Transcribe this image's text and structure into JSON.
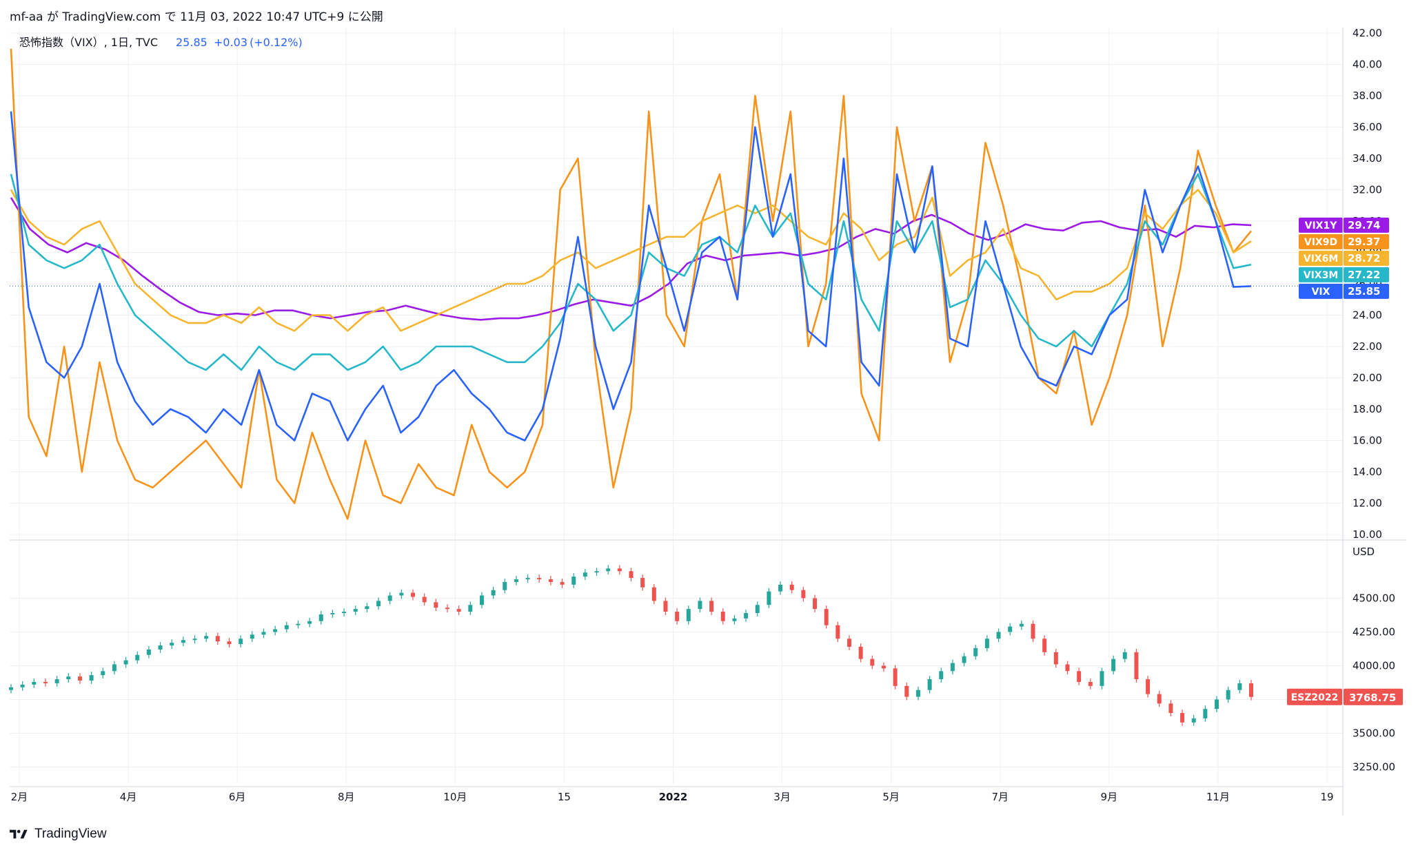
{
  "header": {
    "publish_line": "mf-aa が TradingView.com で 11月 03, 2022 10:47 UTC+9 に公開"
  },
  "legend": {
    "symbol_title": "恐怖指数（VIX）, 1日, TVC",
    "last": "25.85",
    "change": "+0.03",
    "change_pct": "(+0.12%)"
  },
  "footer": {
    "brand": "TradingView"
  },
  "colors": {
    "VIX": "#2962ff",
    "VIX3M": "#26b8c9",
    "VIX6M": "#f5b52e",
    "VIX9D": "#f7931a",
    "VIX1Y": "#9c1ae6",
    "up": "#26a69a",
    "down": "#ef5350",
    "es_badge": "#ef5350",
    "grid": "#eef0f3"
  },
  "chart_data": [
    {
      "type": "line",
      "title": "恐怖指数（VIX）, 1日, TVC",
      "x_ticks": [
        "2月",
        "4月",
        "6月",
        "8月",
        "10月",
        "15",
        "2022",
        "3月",
        "5月",
        "7月",
        "9月",
        "11月",
        "19"
      ],
      "ylim": [
        10,
        42
      ],
      "y_ticks": [
        "42.00",
        "40.00",
        "38.00",
        "36.00",
        "34.00",
        "32.00",
        "30.00",
        "28.00",
        "26.00",
        "24.00",
        "22.00",
        "20.00",
        "18.00",
        "16.00",
        "14.00",
        "12.00",
        "10.00"
      ],
      "series": [
        {
          "name": "VIX1Y",
          "last_label": "29.74",
          "values": [
            31.5,
            29.5,
            28.5,
            28.0,
            28.6,
            28.2,
            27.5,
            26.5,
            25.6,
            24.8,
            24.2,
            24.0,
            24.1,
            24.0,
            24.3,
            24.3,
            24.0,
            23.8,
            24.0,
            24.2,
            24.3,
            24.6,
            24.3,
            24.0,
            23.8,
            23.7,
            23.8,
            23.8,
            24.0,
            24.3,
            24.7,
            25.0,
            24.8,
            24.6,
            25.2,
            26.0,
            27.3,
            27.8,
            27.5,
            27.8,
            27.9,
            28.0,
            27.8,
            28.0,
            28.3,
            29.0,
            29.5,
            29.2,
            30.0,
            30.4,
            29.9,
            29.2,
            28.8,
            29.2,
            29.8,
            29.5,
            29.4,
            29.9,
            30.0,
            29.6,
            29.4,
            29.5,
            29.0,
            29.7,
            29.6,
            29.8,
            29.74
          ]
        },
        {
          "name": "VIX9D",
          "last_label": "29.37",
          "values": [
            41.0,
            17.5,
            15.0,
            22.0,
            14.0,
            21.0,
            16.0,
            13.5,
            13.0,
            14.0,
            15.0,
            16.0,
            14.5,
            13.0,
            20.5,
            13.5,
            12.0,
            16.5,
            13.5,
            11.0,
            16.0,
            12.5,
            12.0,
            14.5,
            13.0,
            12.5,
            17.0,
            14.0,
            13.0,
            14.0,
            17.0,
            32.0,
            34.0,
            21.0,
            13.0,
            18.0,
            37.0,
            24.0,
            22.0,
            30.0,
            33.0,
            25.0,
            38.0,
            30.0,
            37.0,
            22.0,
            26.0,
            38.0,
            19.0,
            16.0,
            36.0,
            30.0,
            33.5,
            21.0,
            25.0,
            35.0,
            31.0,
            26.0,
            20.0,
            19.0,
            23.0,
            17.0,
            20.0,
            24.0,
            31.0,
            22.0,
            27.0,
            34.5,
            31.0,
            28.0,
            29.37
          ]
        },
        {
          "name": "VIX6M",
          "last_label": "28.72",
          "values": [
            32.0,
            30.0,
            29.0,
            28.5,
            29.5,
            30.0,
            28.0,
            26.0,
            25.0,
            24.0,
            23.5,
            23.5,
            24.0,
            23.5,
            24.5,
            23.5,
            23.0,
            24.0,
            24.0,
            23.0,
            24.0,
            24.5,
            23.0,
            23.5,
            24.0,
            24.5,
            25.0,
            25.5,
            26.0,
            26.0,
            26.5,
            27.5,
            28.0,
            27.0,
            27.5,
            28.0,
            28.5,
            29.0,
            29.0,
            30.0,
            30.5,
            31.0,
            30.5,
            31.0,
            30.0,
            29.0,
            28.5,
            30.5,
            29.5,
            27.5,
            28.5,
            29.0,
            31.5,
            26.5,
            27.5,
            28.0,
            29.5,
            27.0,
            26.5,
            25.0,
            25.5,
            25.5,
            26.0,
            27.0,
            30.5,
            29.5,
            31.0,
            32.0,
            30.5,
            28.0,
            28.72
          ]
        },
        {
          "name": "VIX3M",
          "last_label": "27.22",
          "values": [
            33.0,
            28.5,
            27.5,
            27.0,
            27.5,
            28.5,
            26.0,
            24.0,
            23.0,
            22.0,
            21.0,
            20.5,
            21.5,
            20.5,
            22.0,
            21.0,
            20.5,
            21.5,
            21.5,
            20.5,
            21.0,
            22.0,
            20.5,
            21.0,
            22.0,
            22.0,
            22.0,
            21.5,
            21.0,
            21.0,
            22.0,
            23.5,
            26.0,
            25.0,
            23.0,
            24.0,
            28.0,
            27.0,
            26.5,
            28.5,
            29.0,
            28.0,
            31.0,
            29.0,
            30.5,
            26.0,
            25.0,
            30.0,
            25.0,
            23.0,
            30.0,
            28.0,
            30.0,
            24.5,
            25.0,
            27.5,
            26.0,
            24.0,
            22.5,
            22.0,
            23.0,
            22.0,
            24.0,
            26.0,
            30.0,
            28.5,
            31.0,
            33.0,
            30.0,
            27.0,
            27.22
          ]
        },
        {
          "name": "VIX",
          "last_label": "25.85",
          "values": [
            37.0,
            24.5,
            21.0,
            20.0,
            22.0,
            26.0,
            21.0,
            18.5,
            17.0,
            18.0,
            17.5,
            16.5,
            18.0,
            17.0,
            20.5,
            17.0,
            16.0,
            19.0,
            18.5,
            16.0,
            18.0,
            19.5,
            16.5,
            17.5,
            19.5,
            20.5,
            19.0,
            18.0,
            16.5,
            16.0,
            18.0,
            22.5,
            29.0,
            22.0,
            18.0,
            21.0,
            31.0,
            27.0,
            23.0,
            28.0,
            29.0,
            25.0,
            36.0,
            29.0,
            33.0,
            23.0,
            22.0,
            34.0,
            21.0,
            19.5,
            33.0,
            28.0,
            33.5,
            22.5,
            22.0,
            30.0,
            26.0,
            22.0,
            20.0,
            19.5,
            22.0,
            21.5,
            24.0,
            25.0,
            32.0,
            28.0,
            31.0,
            33.5,
            30.0,
            25.8,
            25.85
          ]
        }
      ],
      "legend_position": "right-axis"
    },
    {
      "type": "candlestick",
      "symbol": "ESZ2022",
      "last_label": "3768.75",
      "currency_label": "USD",
      "ylim": [
        3125,
        4900
      ],
      "y_ticks": [
        "4500.00",
        "4250.00",
        "4000.00",
        "3750.00",
        "3500.00",
        "3250.00"
      ],
      "values": [
        3840,
        3860,
        3880,
        3870,
        3900,
        3920,
        3890,
        3930,
        3960,
        4010,
        4040,
        4080,
        4120,
        4150,
        4170,
        4190,
        4200,
        4220,
        4180,
        4160,
        4200,
        4230,
        4250,
        4270,
        4300,
        4310,
        4330,
        4380,
        4390,
        4400,
        4420,
        4440,
        4480,
        4520,
        4540,
        4510,
        4470,
        4430,
        4420,
        4400,
        4450,
        4520,
        4560,
        4620,
        4640,
        4650,
        4640,
        4620,
        4600,
        4660,
        4690,
        4700,
        4720,
        4700,
        4650,
        4580,
        4480,
        4400,
        4330,
        4420,
        4480,
        4400,
        4330,
        4350,
        4390,
        4450,
        4550,
        4600,
        4560,
        4500,
        4420,
        4300,
        4200,
        4140,
        4050,
        4000,
        3980,
        3850,
        3770,
        3820,
        3900,
        3960,
        4020,
        4070,
        4130,
        4200,
        4250,
        4290,
        4310,
        4200,
        4100,
        4010,
        3960,
        3880,
        3850,
        3960,
        4050,
        4100,
        3900,
        3790,
        3720,
        3650,
        3580,
        3610,
        3680,
        3750,
        3820,
        3870,
        3768.75
      ]
    }
  ]
}
